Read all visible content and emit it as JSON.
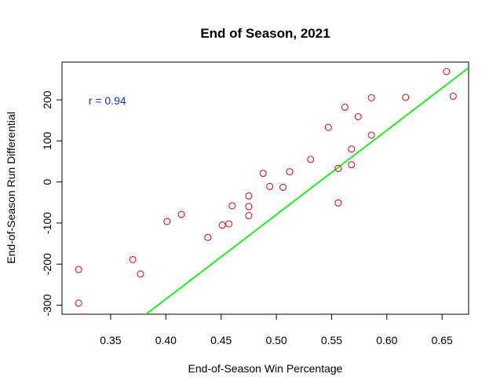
{
  "chart_data": {
    "type": "scatter",
    "title": "End of Season, 2021",
    "xlabel": "End-of-Season Win Percentage",
    "ylabel": "End-of-Season Run Differential",
    "xlim": [
      0.306,
      0.674
    ],
    "ylim": [
      -322,
      292
    ],
    "x_ticks": [
      0.35,
      0.4,
      0.45,
      0.5,
      0.55,
      0.6,
      0.65
    ],
    "x_tick_labels": [
      "0.35",
      "0.40",
      "0.45",
      "0.50",
      "0.55",
      "0.60",
      "0.65"
    ],
    "y_ticks": [
      -300,
      -200,
      -100,
      0,
      100,
      200
    ],
    "y_tick_labels": [
      "-300",
      "-200",
      "-100",
      "0",
      "100",
      "200"
    ],
    "grid": false,
    "annotation": {
      "text": "r = 0.94",
      "x": 0.33,
      "y": 198
    },
    "point_color": "#dd0000",
    "fit_color": "#22ee22",
    "annotation_color": "#1a2ee0",
    "fit_line": {
      "intercept": -1107,
      "slope": 2055
    },
    "series": [
      {
        "x": [
          0.321,
          0.321,
          0.37,
          0.377,
          0.401,
          0.414,
          0.438,
          0.451,
          0.457,
          0.46,
          0.475,
          0.475,
          0.475,
          0.488,
          0.494,
          0.506,
          0.512,
          0.531,
          0.547,
          0.556,
          0.556,
          0.562,
          0.568,
          0.568,
          0.574,
          0.586,
          0.586,
          0.617,
          0.654,
          0.66
        ],
        "y": [
          -213,
          -295,
          -189,
          -224,
          -96,
          -79,
          -135,
          -105,
          -102,
          -58,
          -34,
          -60,
          -82,
          21,
          -11,
          -13,
          25,
          55,
          133,
          33,
          -51,
          182,
          42,
          80,
          159,
          114,
          205,
          206,
          269,
          209
        ]
      }
    ]
  }
}
